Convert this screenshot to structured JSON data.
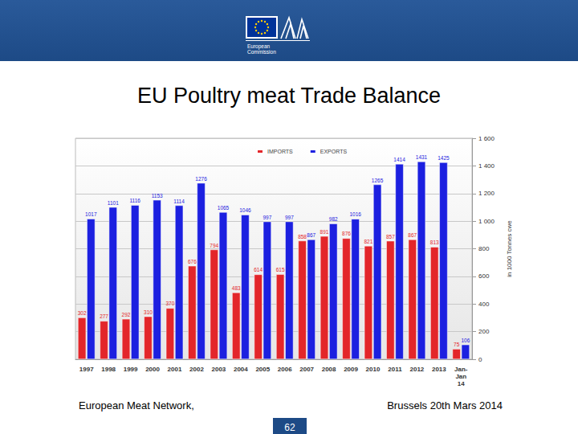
{
  "header": {
    "logo_text": "European\nCommission"
  },
  "chart_data": {
    "type": "bar",
    "title": "EU Poultry meat Trade Balance",
    "y_label": "in 1000 Tonnes cwe",
    "categories": [
      "1997",
      "1998",
      "1999",
      "2000",
      "2001",
      "2002",
      "2003",
      "2004",
      "2005",
      "2006",
      "2007",
      "2008",
      "2009",
      "2010",
      "2011",
      "2012",
      "2013",
      "Jan-\nJan\n14"
    ],
    "series": [
      {
        "name": "IMPORTS",
        "color": "#e3262a",
        "values": [
          302,
          277,
          292,
          310,
          370,
          676,
          794,
          483,
          614,
          615,
          858,
          891,
          876,
          821,
          857,
          867,
          813,
          75
        ]
      },
      {
        "name": "EXPORTS",
        "color": "#1c20e0",
        "values": [
          1017,
          1101,
          1116,
          1153,
          1114,
          1276,
          1065,
          1046,
          997,
          997,
          867,
          982,
          1016,
          1265,
          1414,
          1431,
          1425,
          106
        ]
      }
    ],
    "ylim": [
      0,
      1600
    ],
    "yticks": [
      0,
      200,
      400,
      600,
      800,
      {
        "value": 1000,
        "label": "1 000"
      },
      {
        "value": 1200,
        "label": "1 200"
      },
      {
        "value": 1400,
        "label": "1 400"
      },
      {
        "value": 1600,
        "label": "1 600"
      }
    ],
    "grid": true,
    "legend": "top",
    "data_labels": true
  },
  "footer": {
    "left": "European Meat Network,",
    "right": "Brussels 20th Mars 2014",
    "page": "62"
  }
}
